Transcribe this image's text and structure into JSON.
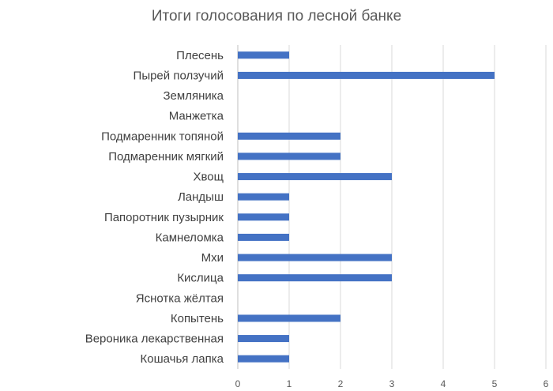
{
  "chart_data": {
    "type": "bar",
    "orientation": "horizontal",
    "title": "Итоги голосования по лесной банке",
    "categories": [
      "Плесень",
      "Пырей ползучий",
      "Земляника",
      "Манжетка",
      "Подмаренник топяной",
      "Подмаренник мягкий",
      "Хвощ",
      "Ландыш",
      "Папоротник пузырник",
      "Камнеломка",
      "Мхи",
      "Кислица",
      "Яснотка жёлтая",
      "Копытень",
      "Вероника лекарственная",
      "Кошачья лапка"
    ],
    "values": [
      1,
      5,
      0,
      0,
      2,
      2,
      3,
      1,
      1,
      1,
      3,
      3,
      0,
      2,
      1,
      1
    ],
    "xlim": [
      0,
      6
    ],
    "xticks": [
      "0",
      "1",
      "2",
      "3",
      "4",
      "5",
      "6"
    ],
    "xlabel": "",
    "ylabel": "",
    "grid": true,
    "bar_color": "#4472c4"
  }
}
